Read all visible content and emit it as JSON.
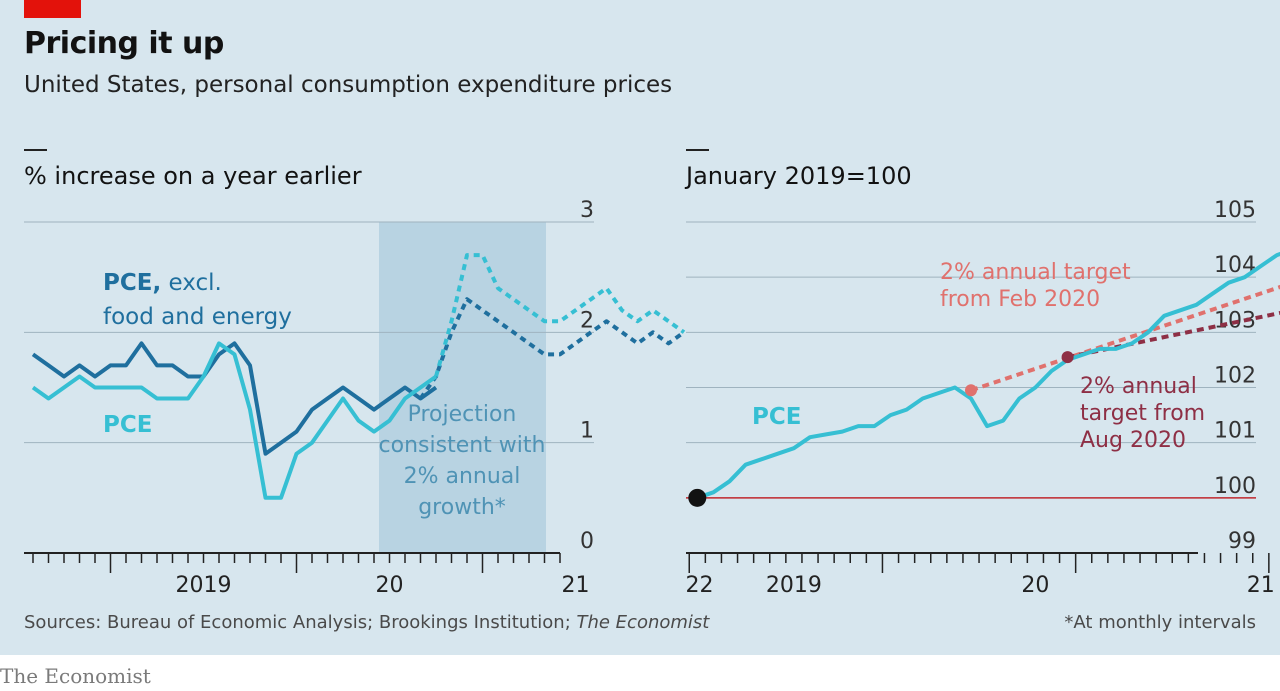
{
  "title": "Pricing it up",
  "subtitle": "United States, personal consumption expenditure prices",
  "sources_prefix": "Sources: Bureau of Economic Analysis; Brookings Institution; ",
  "sources_italic": "The Economist",
  "footnote": "*At monthly intervals",
  "brand": "The Economist",
  "colors": {
    "background": "#d7e6ee",
    "pce": "#36bfd3",
    "core_pce": "#1f6f9e",
    "projection_band": "#b8d3e2",
    "target_feb": "#e0716d",
    "target_aug": "#8e2f45",
    "baseline": "#c0272d",
    "brand_red": "#e3120b"
  },
  "chart_data": [
    {
      "type": "line",
      "ylabel": "% increase on a year earlier",
      "ylim": [
        0,
        3
      ],
      "yticks": [
        "0",
        "1",
        "2",
        "3"
      ],
      "x_tick_labels": [
        "2019",
        "20",
        "21",
        "22"
      ],
      "months_start": "2018-07",
      "grid": true,
      "annotations": {
        "core_label_bold": "PCE,",
        "core_label_rest": " excl.",
        "core_label_line2": "food and energy",
        "pce_label": "PCE",
        "projection_lines": [
          "Projection",
          "consistent with",
          "2% annual",
          "growth*"
        ]
      },
      "projection_start": "2020-09",
      "projection_end": "2022-01",
      "series": [
        {
          "name": "PCE, excl. food and energy",
          "x_month_index": [
            0,
            1,
            2,
            3,
            4,
            5,
            6,
            7,
            8,
            9,
            10,
            11,
            12,
            13,
            14,
            15,
            16,
            17,
            18,
            19,
            20,
            21,
            22,
            23,
            24,
            25,
            26
          ],
          "values": [
            1.8,
            1.7,
            1.6,
            1.7,
            1.6,
            1.7,
            1.7,
            1.9,
            1.7,
            1.7,
            1.6,
            1.6,
            1.8,
            1.9,
            1.7,
            0.9,
            1.0,
            1.1,
            1.3,
            1.4,
            1.5,
            1.4,
            1.3,
            1.4,
            1.5,
            1.4,
            1.5
          ],
          "projection_x_month_index": [
            25,
            26,
            27,
            28,
            29,
            30,
            31,
            32,
            33,
            34,
            35,
            36,
            37,
            38,
            39,
            40,
            41,
            42
          ],
          "projection_values": [
            1.4,
            1.6,
            2.0,
            2.3,
            2.2,
            2.1,
            2.0,
            1.9,
            1.8,
            1.8,
            1.9,
            2.0,
            2.1,
            2.0,
            1.9,
            2.0,
            1.9,
            2.0
          ]
        },
        {
          "name": "PCE",
          "x_month_index": [
            0,
            1,
            2,
            3,
            4,
            5,
            6,
            7,
            8,
            9,
            10,
            11,
            12,
            13,
            14,
            15,
            16,
            17,
            18,
            19,
            20,
            21,
            22,
            23,
            24,
            25,
            26
          ],
          "values": [
            1.5,
            1.4,
            1.5,
            1.6,
            1.5,
            1.5,
            1.5,
            1.5,
            1.4,
            1.4,
            1.4,
            1.6,
            1.9,
            1.8,
            1.3,
            0.5,
            0.5,
            0.9,
            1.0,
            1.2,
            1.4,
            1.2,
            1.1,
            1.2,
            1.4,
            1.5,
            1.6
          ],
          "projection_x_month_index": [
            26,
            27,
            28,
            29,
            30,
            31,
            32,
            33,
            34,
            35,
            36,
            37,
            38,
            39,
            40,
            41,
            42
          ],
          "projection_values": [
            1.6,
            2.1,
            2.7,
            2.7,
            2.4,
            2.3,
            2.2,
            2.1,
            2.1,
            2.2,
            2.3,
            2.4,
            2.2,
            2.1,
            2.2,
            2.1,
            2.0
          ]
        }
      ]
    },
    {
      "type": "line",
      "ylabel": "January 2019=100",
      "ylim": [
        99,
        105
      ],
      "yticks": [
        "99",
        "100",
        "101",
        "102",
        "103",
        "104",
        "105"
      ],
      "x_tick_labels": [
        "2019",
        "20",
        "21"
      ],
      "months_start": "2018-10",
      "grid": true,
      "annotations": {
        "pce_label": "PCE",
        "target_feb_lines": [
          "2% annual target",
          "from Feb 2020"
        ],
        "target_aug_lines": [
          "2% annual",
          "target from",
          "Aug 2020"
        ]
      },
      "series": [
        {
          "name": "PCE",
          "x_month_index": [
            3,
            4,
            5,
            6,
            7,
            8,
            9,
            10,
            11,
            12,
            13,
            14,
            15,
            16,
            17,
            18,
            19,
            20,
            21,
            22,
            23,
            24,
            25,
            26,
            27,
            28,
            29,
            30,
            31,
            32,
            33,
            34,
            35,
            36,
            37,
            38,
            39,
            40
          ],
          "values": [
            100.0,
            100.1,
            100.3,
            100.6,
            100.7,
            100.8,
            100.9,
            101.1,
            101.15,
            101.2,
            101.3,
            101.3,
            101.5,
            101.6,
            101.8,
            101.9,
            102.0,
            101.8,
            101.3,
            101.4,
            101.8,
            102.0,
            102.3,
            102.5,
            102.6,
            102.7,
            102.7,
            102.8,
            103.0,
            103.3,
            103.4,
            103.5,
            103.7,
            103.9,
            104.0,
            104.2,
            104.4,
            104.5
          ]
        }
      ],
      "targets": [
        {
          "name": "2% annual target from Feb 2020",
          "x_month_index": [
            20,
            40
          ],
          "values": [
            101.95,
            103.9
          ]
        },
        {
          "name": "2% annual target from Aug 2020",
          "x_month_index": [
            26,
            40
          ],
          "values": [
            102.55,
            103.4
          ]
        }
      ],
      "baseline": 100
    }
  ]
}
